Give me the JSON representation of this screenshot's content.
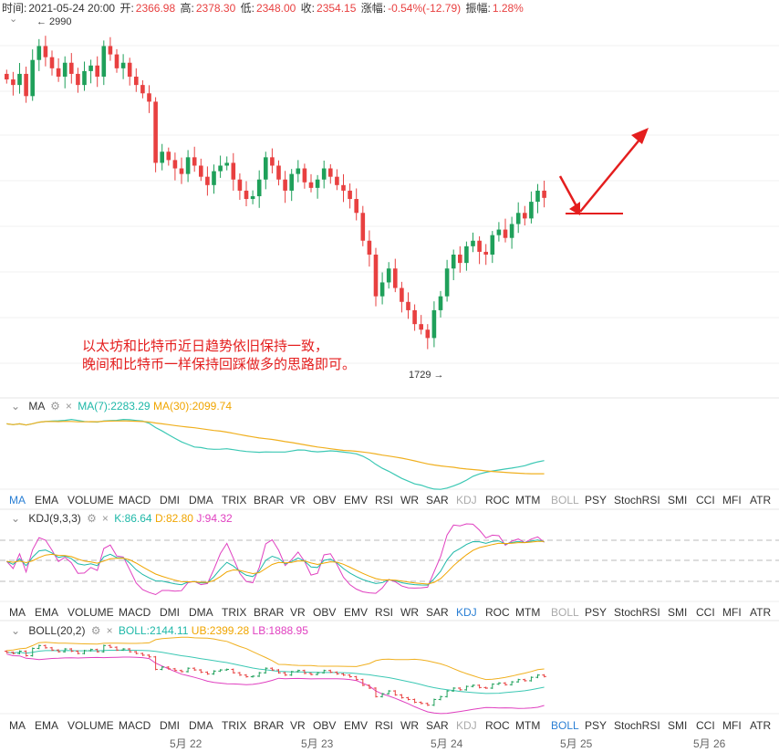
{
  "header": {
    "time_label": "时间:",
    "time": "2021-05-24 20:00",
    "open_label": "开:",
    "open": "2366.98",
    "high_label": "高:",
    "high": "2378.30",
    "low_label": "低:",
    "low": "2348.00",
    "close_label": "收:",
    "close": "2354.15",
    "change_label": "涨幅:",
    "change": "-0.54%(-12.79)",
    "amplitude_label": "振幅:",
    "amplitude": "1.28%"
  },
  "markers": {
    "high_marker": "← 2990",
    "low_marker": "1729 →"
  },
  "annotation": {
    "line1": "以太坊和比特币近日趋势依旧保持一致，",
    "line2": "晚间和比特币一样保持回踩做多的思路即可。"
  },
  "ma_panel": {
    "name": "MA",
    "v1": "MA(7):2283.29",
    "v2": "MA(30):2099.74"
  },
  "kdj_panel": {
    "name": "KDJ(9,3,3)",
    "k": "K:86.64",
    "d": "D:82.80",
    "j": "J:94.32"
  },
  "boll_panel": {
    "name": "BOLL(20,2)",
    "mid": "BOLL:2144.11",
    "ub": "UB:2399.28",
    "lb": "LB:1888.95"
  },
  "tabs": [
    "MA",
    "EMA",
    "VOLUME",
    "MACD",
    "DMI",
    "DMA",
    "TRIX",
    "BRAR",
    "VR",
    "OBV",
    "EMV",
    "RSI",
    "WR",
    "SAR",
    "KDJ",
    "ROC",
    "MTM",
    "BOLL",
    "PSY",
    "StochRSI",
    "SMI",
    "CCI",
    "MFI",
    "ATR"
  ],
  "x_axis": [
    "5月 22",
    "5月 23",
    "5月 24",
    "5月 25",
    "5月 26"
  ],
  "colors": {
    "up": "#1fa05a",
    "down": "#e84040",
    "ma7": "#3cc8b4",
    "ma30": "#f0b020",
    "k": "#1fb8a8",
    "d": "#f0a500",
    "j": "#e040c0",
    "arrow": "#e41e1e"
  },
  "chart_data": {
    "type": "candlestick",
    "interval": "4h",
    "price_high": 2990,
    "price_low": 1729,
    "last_close": 2354.15,
    "candles_close": [
      2780,
      2760,
      2800,
      2720,
      2850,
      2900,
      2860,
      2820,
      2790,
      2840,
      2800,
      2760,
      2810,
      2830,
      2790,
      2900,
      2870,
      2820,
      2840,
      2790,
      2760,
      2730,
      2700,
      2480,
      2520,
      2490,
      2460,
      2440,
      2500,
      2470,
      2430,
      2400,
      2450,
      2470,
      2480,
      2420,
      2380,
      2350,
      2360,
      2420,
      2500,
      2470,
      2420,
      2380,
      2440,
      2460,
      2410,
      2390,
      2420,
      2460,
      2430,
      2400,
      2380,
      2350,
      2300,
      2200,
      2150,
      2000,
      2050,
      2100,
      2030,
      1980,
      1950,
      1900,
      1880,
      1850,
      1950,
      2000,
      2100,
      2150,
      2120,
      2180,
      2200,
      2160,
      2150,
      2220,
      2240,
      2210,
      2260,
      2300,
      2280,
      2340,
      2380,
      2354
    ]
  },
  "right_arrow_note": ""
}
